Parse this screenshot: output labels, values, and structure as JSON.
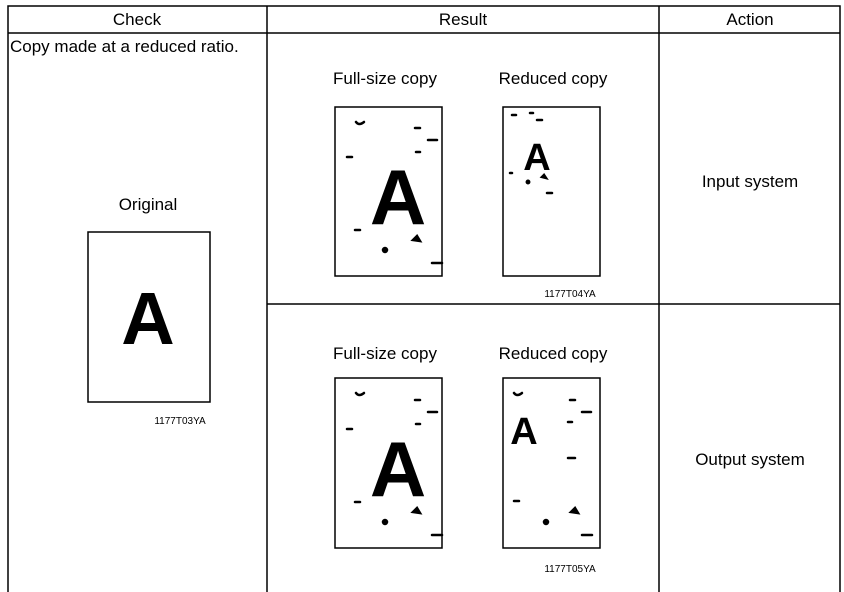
{
  "header": {
    "columns": [
      "Check",
      "Result",
      "Action"
    ]
  },
  "check": {
    "text": "Copy made at a reduced ratio.",
    "original": {
      "label": "Original",
      "letter": "A",
      "code": "1177T03YA"
    }
  },
  "results": [
    {
      "full_label": "Full-size copy",
      "full_letter": "A",
      "reduced_label": "Reduced copy",
      "reduced_letter": "A",
      "code": "1177T04YA",
      "action": "Input system"
    },
    {
      "full_label": "Full-size copy",
      "full_letter": "A",
      "reduced_label": "Reduced copy",
      "reduced_letter": "A",
      "code": "1177T05YA",
      "action": "Output system"
    }
  ]
}
